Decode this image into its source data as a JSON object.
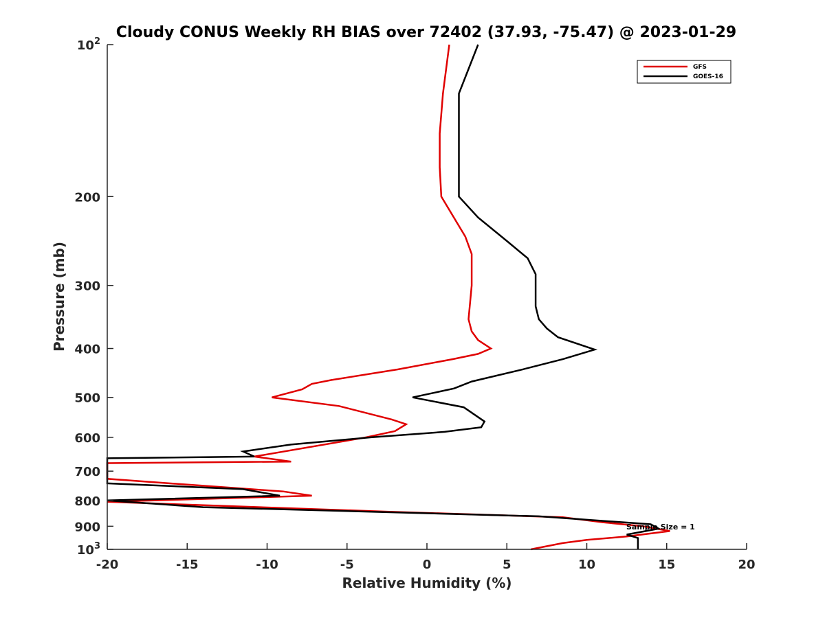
{
  "chart_data": {
    "type": "line",
    "title": "Cloudy CONUS Weekly RH BIAS over 72402 (37.93, -75.47) @ 2023-01-29",
    "xlabel": "Relative Humidity (%)",
    "ylabel": "Pressure (mb)",
    "xlim": [
      -20,
      20
    ],
    "ylim": [
      100,
      1000
    ],
    "y_scale": "log",
    "y_reversed": true,
    "grid": false,
    "legend_position": "top-right",
    "x_ticks": [
      -20,
      -15,
      -10,
      -5,
      0,
      5,
      10,
      15,
      20
    ],
    "x_tick_labels": [
      "-20",
      "-15",
      "-10",
      "-5",
      "0",
      "5",
      "10",
      "15",
      "20"
    ],
    "y_ticks": [
      100,
      200,
      300,
      400,
      500,
      600,
      700,
      800,
      900,
      1000
    ],
    "y_tick_labels": [
      "10^2",
      "200",
      "300",
      "400",
      "500",
      "600",
      "700",
      "800",
      "900",
      "10^3"
    ],
    "annotation": "Sample Size = 1",
    "series": [
      {
        "name": "GFS",
        "color": "#e00000",
        "points": [
          [
            1.4,
            100
          ],
          [
            1.0,
            125
          ],
          [
            0.8,
            150
          ],
          [
            0.8,
            175
          ],
          [
            0.9,
            200
          ],
          [
            2.4,
            240
          ],
          [
            2.8,
            260
          ],
          [
            2.8,
            300
          ],
          [
            2.6,
            350
          ],
          [
            2.8,
            370
          ],
          [
            3.2,
            385
          ],
          [
            4.0,
            400
          ],
          [
            3.2,
            410
          ],
          [
            1.6,
            420
          ],
          [
            -1.8,
            440
          ],
          [
            -6.0,
            462
          ],
          [
            -7.2,
            470
          ],
          [
            -7.8,
            482
          ],
          [
            -9.7,
            500
          ],
          [
            -5.5,
            520
          ],
          [
            -2.2,
            553
          ],
          [
            -1.3,
            565
          ],
          [
            -2.0,
            583
          ],
          [
            -3.8,
            600
          ],
          [
            -10.8,
            655
          ],
          [
            -8.5,
            670
          ],
          [
            -20.0,
            675
          ],
          [
            -20.0,
            725
          ],
          [
            -11.0,
            760
          ],
          [
            -9.0,
            768
          ],
          [
            -7.2,
            783
          ],
          [
            -20.0,
            805
          ],
          [
            -2.5,
            842
          ],
          [
            8.5,
            864
          ],
          [
            11.0,
            884
          ],
          [
            13.5,
            900
          ],
          [
            15.2,
            920
          ],
          [
            12.5,
            943
          ],
          [
            10.0,
            958
          ],
          [
            8.5,
            972
          ],
          [
            6.5,
            1000
          ]
        ]
      },
      {
        "name": "GOES-16",
        "color": "#000000",
        "points": [
          [
            3.2,
            100
          ],
          [
            2.0,
            125
          ],
          [
            2.0,
            150
          ],
          [
            2.0,
            175
          ],
          [
            2.0,
            200
          ],
          [
            3.2,
            220
          ],
          [
            5.0,
            245
          ],
          [
            6.3,
            265
          ],
          [
            6.8,
            285
          ],
          [
            6.8,
            300
          ],
          [
            6.8,
            330
          ],
          [
            7.0,
            350
          ],
          [
            7.5,
            365
          ],
          [
            8.2,
            380
          ],
          [
            10.5,
            402
          ],
          [
            8.5,
            420
          ],
          [
            6.0,
            440
          ],
          [
            2.8,
            465
          ],
          [
            1.7,
            480
          ],
          [
            -0.9,
            500
          ],
          [
            2.3,
            523
          ],
          [
            3.6,
            558
          ],
          [
            3.4,
            573
          ],
          [
            1.1,
            585
          ],
          [
            -3.5,
            600
          ],
          [
            -8.5,
            620
          ],
          [
            -11.5,
            640
          ],
          [
            -10.8,
            655
          ],
          [
            -20.0,
            660
          ],
          [
            -20.0,
            740
          ],
          [
            -11.5,
            760
          ],
          [
            -9.2,
            783
          ],
          [
            -20.0,
            800
          ],
          [
            -14.0,
            825
          ],
          [
            7.0,
            860
          ],
          [
            14.0,
            892
          ],
          [
            14.5,
            910
          ],
          [
            12.5,
            935
          ],
          [
            13.2,
            950
          ],
          [
            13.2,
            1000
          ]
        ]
      }
    ]
  }
}
